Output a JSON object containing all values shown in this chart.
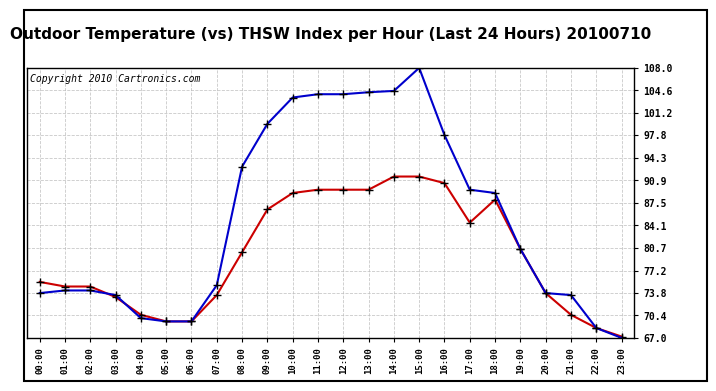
{
  "title": "Outdoor Temperature (vs) THSW Index per Hour (Last 24 Hours) 20100710",
  "copyright": "Copyright 2010 Cartronics.com",
  "hours": [
    "00:00",
    "01:00",
    "02:00",
    "03:00",
    "04:00",
    "05:00",
    "06:00",
    "07:00",
    "08:00",
    "09:00",
    "10:00",
    "11:00",
    "12:00",
    "13:00",
    "14:00",
    "15:00",
    "16:00",
    "17:00",
    "18:00",
    "19:00",
    "20:00",
    "21:00",
    "22:00",
    "23:00"
  ],
  "temp": [
    75.5,
    74.8,
    74.8,
    73.2,
    70.5,
    69.5,
    69.5,
    73.5,
    80.0,
    86.5,
    89.0,
    89.5,
    89.5,
    89.5,
    91.5,
    91.5,
    90.5,
    84.5,
    88.0,
    80.5,
    73.8,
    70.5,
    68.5,
    67.2
  ],
  "thsw": [
    73.8,
    74.2,
    74.2,
    73.5,
    70.0,
    69.5,
    69.5,
    75.0,
    93.0,
    99.5,
    103.5,
    104.0,
    104.0,
    104.3,
    104.5,
    108.0,
    97.8,
    89.5,
    89.0,
    80.5,
    73.8,
    73.5,
    68.5,
    67.0
  ],
  "temp_color": "#cc0000",
  "thsw_color": "#0000cc",
  "ymin": 67.0,
  "ymax": 108.0,
  "yticks": [
    67.0,
    70.4,
    73.8,
    77.2,
    80.7,
    84.1,
    87.5,
    90.9,
    94.3,
    97.8,
    101.2,
    104.6,
    108.0
  ],
  "bg_color": "#ffffff",
  "plot_bg": "#ffffff",
  "grid_color": "#bbbbbb",
  "title_fontsize": 11,
  "copyright_fontsize": 7,
  "marker_size": 3.5,
  "line_width": 1.5
}
